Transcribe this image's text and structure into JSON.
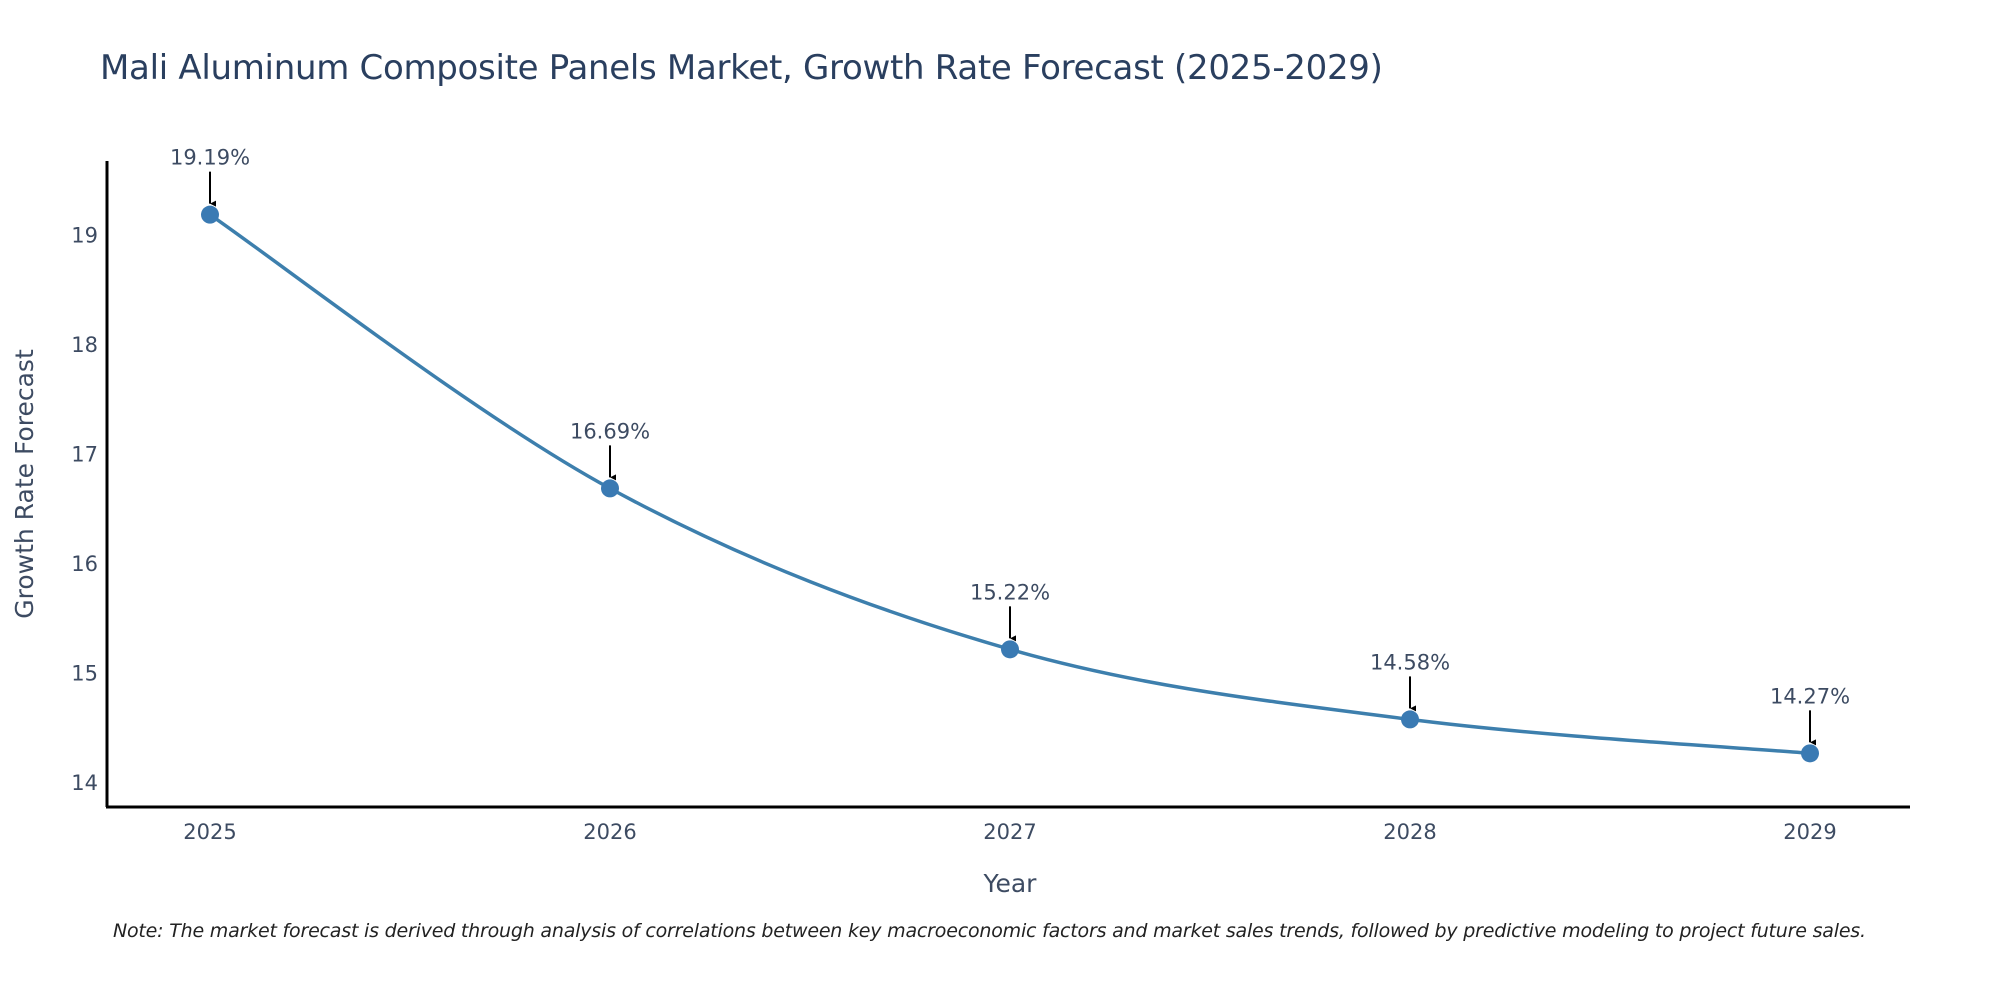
{
  "chart_data": {
    "type": "line",
    "title": "Mali Aluminum Composite Panels Market, Growth Rate Forecast (2025-2029)",
    "xlabel": "Year",
    "ylabel": "Growth Rate Forecast",
    "categories": [
      "2025",
      "2026",
      "2027",
      "2028",
      "2029"
    ],
    "values": [
      19.19,
      16.69,
      15.22,
      14.58,
      14.27
    ],
    "data_labels": [
      "19.19%",
      "16.69%",
      "15.22%",
      "14.58%",
      "14.27%"
    ],
    "y_ticks": [
      14,
      15,
      16,
      17,
      18,
      19
    ],
    "ylim": [
      13.78,
      19.68
    ],
    "grid": false,
    "line_shape": "spline",
    "line_color": "#3d7fad",
    "marker_color": "#3a7ab3",
    "annotation_color": "#000000",
    "note": "Note: The market forecast is derived through analysis of correlations between key macroeconomic factors and market sales trends, followed by predictive modeling to project future sales."
  }
}
